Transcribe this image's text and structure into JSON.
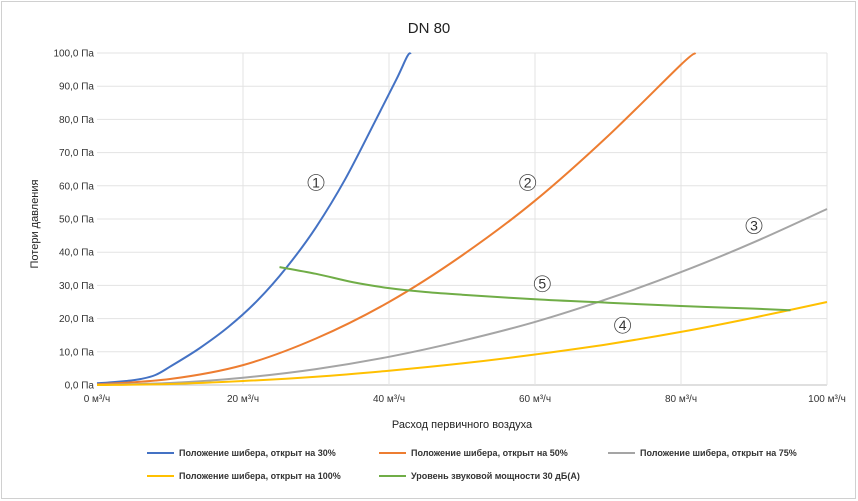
{
  "chart_data": {
    "type": "line",
    "title": "DN 80",
    "xlabel": "Расход первичного воздуха",
    "ylabel": "Потери давления",
    "xlim": [
      0,
      100
    ],
    "ylim": [
      0,
      100
    ],
    "grid": true,
    "legend_position": "bottom",
    "x_ticks": [
      "0 м³/ч",
      "20 м³/ч",
      "40 м³/ч",
      "60 м³/ч",
      "80 м³/ч",
      "100 м³/ч"
    ],
    "y_ticks": [
      "0,0 Па",
      "10,0 Па",
      "20,0 Па",
      "30,0 Па",
      "40,0 Па",
      "50,0 Па",
      "60,0 Па",
      "70,0 Па",
      "80,0 Па",
      "90,0 Па",
      "100,0 Па"
    ],
    "series": [
      {
        "name": "Положение шибера, открыт на 30%",
        "color": "#4472c4",
        "marker": "1",
        "points": [
          [
            0,
            0.5
          ],
          [
            4,
            1.2
          ],
          [
            6,
            1.8
          ],
          [
            8,
            3
          ],
          [
            10,
            5.5
          ],
          [
            14,
            11
          ],
          [
            18,
            17.5
          ],
          [
            22,
            25.5
          ],
          [
            26,
            35.5
          ],
          [
            30,
            47.5
          ],
          [
            34,
            62
          ],
          [
            38,
            79
          ],
          [
            41,
            92
          ],
          [
            42.5,
            99
          ],
          [
            43,
            100
          ]
        ]
      },
      {
        "name": "Положение шибера, открыт на 50%",
        "color": "#ed7d31",
        "marker": "2",
        "points": [
          [
            0,
            0.2
          ],
          [
            10,
            1.8
          ],
          [
            20,
            6
          ],
          [
            30,
            14
          ],
          [
            40,
            25
          ],
          [
            50,
            39
          ],
          [
            60,
            55.5
          ],
          [
            70,
            75
          ],
          [
            80,
            96.5
          ],
          [
            82,
            100
          ]
        ]
      },
      {
        "name": "Положение шибера, открыт на 75%",
        "color": "#a5a5a5",
        "marker": "3",
        "points": [
          [
            0,
            0.1
          ],
          [
            10,
            0.6
          ],
          [
            20,
            2.2
          ],
          [
            30,
            4.8
          ],
          [
            40,
            8.5
          ],
          [
            50,
            13.3
          ],
          [
            60,
            19
          ],
          [
            70,
            26
          ],
          [
            80,
            34
          ],
          [
            90,
            43
          ],
          [
            100,
            53
          ]
        ]
      },
      {
        "name": "Положение шибера, открыт на 100%",
        "color": "#ffc000",
        "marker": "4",
        "points": [
          [
            0,
            0
          ],
          [
            10,
            0.3
          ],
          [
            20,
            1.2
          ],
          [
            30,
            2.5
          ],
          [
            40,
            4.3
          ],
          [
            50,
            6.5
          ],
          [
            60,
            9.2
          ],
          [
            70,
            12.3
          ],
          [
            80,
            16
          ],
          [
            90,
            20.3
          ],
          [
            100,
            25
          ]
        ]
      },
      {
        "name": "Уровень звуковой мощности 30 дБ(А)",
        "color": "#70ad47",
        "marker": "5",
        "points": [
          [
            25,
            35.5
          ],
          [
            30,
            33.5
          ],
          [
            35,
            31
          ],
          [
            40,
            29.2
          ],
          [
            45,
            28
          ],
          [
            50,
            27.2
          ],
          [
            60,
            25.8
          ],
          [
            70,
            24.8
          ],
          [
            80,
            23.8
          ],
          [
            90,
            23
          ],
          [
            95,
            22.5
          ]
        ]
      }
    ],
    "markers": [
      {
        "label": "1",
        "x": 30,
        "y": 61
      },
      {
        "label": "2",
        "x": 59,
        "y": 61
      },
      {
        "label": "3",
        "x": 90,
        "y": 48
      },
      {
        "label": "4",
        "x": 72,
        "y": 18
      },
      {
        "label": "5",
        "x": 61,
        "y": 30.5
      }
    ]
  }
}
